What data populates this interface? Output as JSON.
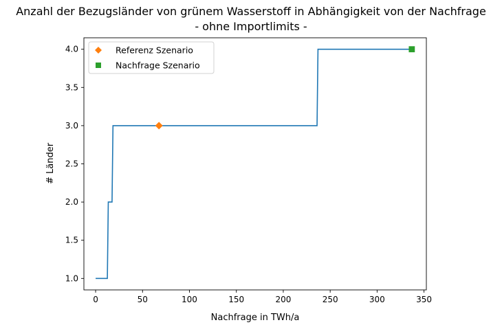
{
  "chart_data": {
    "type": "line",
    "title": "Anzahl der Bezugsländer von grünem Wasserstoff in Abhängigkeit von der Nachfrage",
    "subtitle": "- ohne Importlimits -",
    "xlabel": "Nachfrage in TWh/a",
    "ylabel": "# Länder",
    "xlim": [
      -12.5,
      352.5
    ],
    "ylim": [
      0.85,
      4.15
    ],
    "xticks": [
      0,
      50,
      100,
      150,
      200,
      250,
      300,
      350
    ],
    "yticks": [
      1.0,
      1.5,
      2.0,
      2.5,
      3.0,
      3.5,
      4.0
    ],
    "ytick_labels": [
      "1.0",
      "1.5",
      "2.0",
      "2.5",
      "3.0",
      "3.5",
      "4.0"
    ],
    "grid": false,
    "legend_position": "top-left",
    "series": [
      {
        "color": "#1f77b4",
        "x": [
          0,
          12.5,
          13.5,
          17.5,
          18.5,
          236,
          237,
          337
        ],
        "y": [
          1,
          1,
          2,
          2,
          3,
          3,
          4,
          4
        ]
      }
    ],
    "markers": [
      {
        "name": "Referenz Szenario",
        "x": 67.5,
        "y": 3,
        "shape": "diamond",
        "color": "#ff7f0e"
      },
      {
        "name": "Nachfrage Szenario",
        "x": 337,
        "y": 4,
        "shape": "square",
        "color": "#2ca02c"
      }
    ]
  }
}
